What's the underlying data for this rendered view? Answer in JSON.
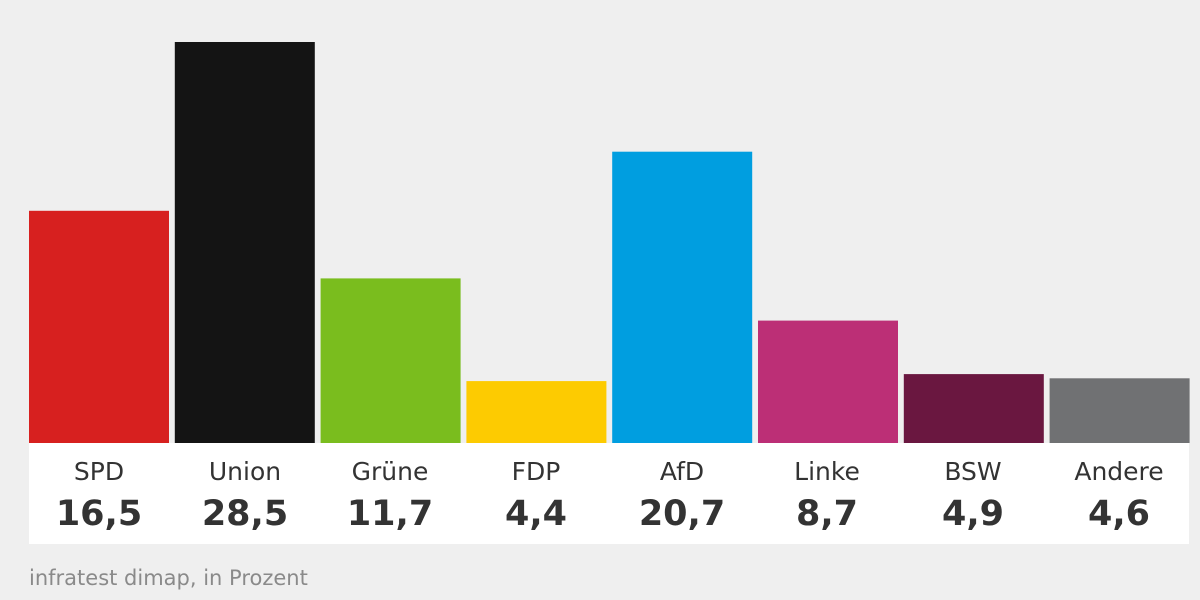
{
  "chart_data": {
    "type": "bar",
    "categories": [
      "SPD",
      "Union",
      "Grüne",
      "FDP",
      "AfD",
      "Linke",
      "BSW",
      "Andere"
    ],
    "value_labels": [
      "16,5",
      "28,5",
      "11,7",
      "4,4",
      "20,7",
      "8,7",
      "4,9",
      "4,6"
    ],
    "values": [
      16.5,
      28.5,
      11.7,
      4.4,
      20.7,
      8.7,
      4.9,
      4.6
    ],
    "colors": [
      "#d7201f",
      "#141414",
      "#7abd1e",
      "#fdcb01",
      "#009ee0",
      "#bc2f76",
      "#6a1740",
      "#707173"
    ],
    "title": "",
    "xlabel": "",
    "ylabel": "",
    "ylim": [
      0,
      28.5
    ],
    "grid": false,
    "legend": "none"
  },
  "source": "infratest dimap, in Prozent"
}
